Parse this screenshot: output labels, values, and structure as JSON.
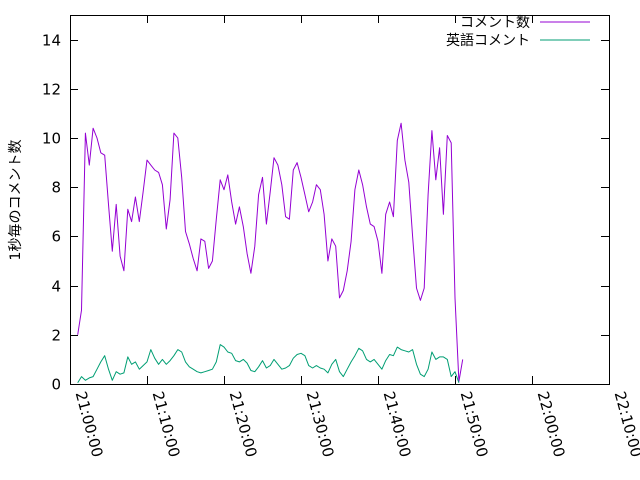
{
  "chart_data": {
    "type": "line",
    "ylabel": "1秒毎のコメント数",
    "xlabel": "",
    "xlim": [
      "21:00:00",
      "22:10:00"
    ],
    "ylim": [
      0,
      15
    ],
    "x_ticks": [
      "21:00:00",
      "21:10:00",
      "21:20:00",
      "21:30:00",
      "21:40:00",
      "21:50:00",
      "22:00:00",
      "22:10:00"
    ],
    "y_ticks": [
      0,
      2,
      4,
      6,
      8,
      10,
      12,
      14
    ],
    "grid": false,
    "legend_position": "top-right",
    "series": [
      {
        "name": "コメント数",
        "color": "#9400d3",
        "points": [
          [
            "21:01:00",
            2.0
          ],
          [
            "21:01:30",
            3.0
          ],
          [
            "21:02:00",
            10.2
          ],
          [
            "21:02:30",
            8.9
          ],
          [
            "21:03:00",
            10.4
          ],
          [
            "21:03:30",
            10.0
          ],
          [
            "21:04:00",
            9.4
          ],
          [
            "21:04:30",
            9.3
          ],
          [
            "21:05:00",
            7.3
          ],
          [
            "21:05:30",
            5.4
          ],
          [
            "21:06:00",
            7.3
          ],
          [
            "21:06:30",
            5.2
          ],
          [
            "21:07:00",
            4.6
          ],
          [
            "21:07:30",
            7.1
          ],
          [
            "21:08:00",
            6.6
          ],
          [
            "21:08:30",
            7.6
          ],
          [
            "21:09:00",
            6.6
          ],
          [
            "21:09:30",
            7.8
          ],
          [
            "21:10:00",
            9.1
          ],
          [
            "21:10:30",
            8.9
          ],
          [
            "21:11:00",
            8.7
          ],
          [
            "21:11:30",
            8.6
          ],
          [
            "21:12:00",
            8.1
          ],
          [
            "21:12:30",
            6.3
          ],
          [
            "21:13:00",
            7.5
          ],
          [
            "21:13:30",
            10.2
          ],
          [
            "21:14:00",
            10.0
          ],
          [
            "21:14:30",
            8.4
          ],
          [
            "21:15:00",
            6.2
          ],
          [
            "21:15:30",
            5.7
          ],
          [
            "21:16:00",
            5.1
          ],
          [
            "21:16:30",
            4.6
          ],
          [
            "21:17:00",
            5.9
          ],
          [
            "21:17:30",
            5.8
          ],
          [
            "21:18:00",
            4.7
          ],
          [
            "21:18:30",
            5.0
          ],
          [
            "21:19:00",
            6.7
          ],
          [
            "21:19:30",
            8.3
          ],
          [
            "21:20:00",
            7.9
          ],
          [
            "21:20:30",
            8.5
          ],
          [
            "21:21:00",
            7.4
          ],
          [
            "21:21:30",
            6.5
          ],
          [
            "21:22:00",
            7.2
          ],
          [
            "21:22:30",
            6.4
          ],
          [
            "21:23:00",
            5.3
          ],
          [
            "21:23:30",
            4.5
          ],
          [
            "21:24:00",
            5.6
          ],
          [
            "21:24:30",
            7.7
          ],
          [
            "21:25:00",
            8.4
          ],
          [
            "21:25:30",
            6.5
          ],
          [
            "21:26:00",
            7.8
          ],
          [
            "21:26:30",
            9.2
          ],
          [
            "21:27:00",
            8.9
          ],
          [
            "21:27:30",
            8.1
          ],
          [
            "21:28:00",
            6.8
          ],
          [
            "21:28:30",
            6.7
          ],
          [
            "21:29:00",
            8.7
          ],
          [
            "21:29:30",
            9.0
          ],
          [
            "21:30:00",
            8.4
          ],
          [
            "21:30:30",
            7.7
          ],
          [
            "21:31:00",
            7.0
          ],
          [
            "21:31:30",
            7.4
          ],
          [
            "21:32:00",
            8.1
          ],
          [
            "21:32:30",
            7.9
          ],
          [
            "21:33:00",
            6.9
          ],
          [
            "21:33:30",
            5.0
          ],
          [
            "21:34:00",
            5.9
          ],
          [
            "21:34:30",
            5.6
          ],
          [
            "21:35:00",
            3.5
          ],
          [
            "21:35:30",
            3.8
          ],
          [
            "21:36:00",
            4.6
          ],
          [
            "21:36:30",
            5.8
          ],
          [
            "21:37:00",
            7.9
          ],
          [
            "21:37:30",
            8.7
          ],
          [
            "21:38:00",
            8.1
          ],
          [
            "21:38:30",
            7.2
          ],
          [
            "21:39:00",
            6.5
          ],
          [
            "21:39:30",
            6.4
          ],
          [
            "21:40:00",
            5.8
          ],
          [
            "21:40:30",
            4.5
          ],
          [
            "21:41:00",
            6.9
          ],
          [
            "21:41:30",
            7.4
          ],
          [
            "21:42:00",
            6.8
          ],
          [
            "21:42:30",
            9.9
          ],
          [
            "21:43:00",
            10.6
          ],
          [
            "21:43:30",
            9.1
          ],
          [
            "21:44:00",
            8.2
          ],
          [
            "21:44:30",
            6.0
          ],
          [
            "21:45:00",
            3.9
          ],
          [
            "21:45:30",
            3.4
          ],
          [
            "21:46:00",
            3.9
          ],
          [
            "21:46:30",
            7.7
          ],
          [
            "21:47:00",
            10.3
          ],
          [
            "21:47:30",
            8.3
          ],
          [
            "21:48:00",
            9.6
          ],
          [
            "21:48:30",
            6.9
          ],
          [
            "21:49:00",
            10.1
          ],
          [
            "21:49:30",
            9.8
          ],
          [
            "21:50:00",
            3.5
          ],
          [
            "21:50:30",
            0.1
          ],
          [
            "21:51:00",
            1.0
          ]
        ]
      },
      {
        "name": "英語コメント",
        "color": "#009e73",
        "points": [
          [
            "21:01:00",
            0.05
          ],
          [
            "21:01:30",
            0.3
          ],
          [
            "21:02:00",
            0.15
          ],
          [
            "21:02:30",
            0.25
          ],
          [
            "21:03:00",
            0.3
          ],
          [
            "21:03:30",
            0.6
          ],
          [
            "21:04:00",
            0.9
          ],
          [
            "21:04:30",
            1.15
          ],
          [
            "21:05:00",
            0.6
          ],
          [
            "21:05:30",
            0.15
          ],
          [
            "21:06:00",
            0.5
          ],
          [
            "21:06:30",
            0.4
          ],
          [
            "21:07:00",
            0.45
          ],
          [
            "21:07:30",
            1.1
          ],
          [
            "21:08:00",
            0.8
          ],
          [
            "21:08:30",
            0.9
          ],
          [
            "21:09:00",
            0.6
          ],
          [
            "21:09:30",
            0.75
          ],
          [
            "21:10:00",
            0.9
          ],
          [
            "21:10:30",
            1.4
          ],
          [
            "21:11:00",
            1.05
          ],
          [
            "21:11:30",
            0.8
          ],
          [
            "21:12:00",
            1.0
          ],
          [
            "21:12:30",
            0.8
          ],
          [
            "21:13:00",
            0.95
          ],
          [
            "21:13:30",
            1.15
          ],
          [
            "21:14:00",
            1.4
          ],
          [
            "21:14:30",
            1.3
          ],
          [
            "21:15:00",
            0.9
          ],
          [
            "21:15:30",
            0.7
          ],
          [
            "21:16:00",
            0.6
          ],
          [
            "21:16:30",
            0.5
          ],
          [
            "21:17:00",
            0.45
          ],
          [
            "21:17:30",
            0.5
          ],
          [
            "21:18:00",
            0.55
          ],
          [
            "21:18:30",
            0.6
          ],
          [
            "21:19:00",
            0.9
          ],
          [
            "21:19:30",
            1.6
          ],
          [
            "21:20:00",
            1.5
          ],
          [
            "21:20:30",
            1.3
          ],
          [
            "21:21:00",
            1.25
          ],
          [
            "21:21:30",
            0.95
          ],
          [
            "21:22:00",
            0.9
          ],
          [
            "21:22:30",
            1.0
          ],
          [
            "21:23:00",
            0.85
          ],
          [
            "21:23:30",
            0.55
          ],
          [
            "21:24:00",
            0.5
          ],
          [
            "21:24:30",
            0.7
          ],
          [
            "21:25:00",
            0.95
          ],
          [
            "21:25:30",
            0.65
          ],
          [
            "21:26:00",
            0.75
          ],
          [
            "21:26:30",
            1.0
          ],
          [
            "21:27:00",
            0.8
          ],
          [
            "21:27:30",
            0.6
          ],
          [
            "21:28:00",
            0.65
          ],
          [
            "21:28:30",
            0.75
          ],
          [
            "21:29:00",
            1.05
          ],
          [
            "21:29:30",
            1.2
          ],
          [
            "21:30:00",
            1.25
          ],
          [
            "21:30:30",
            1.15
          ],
          [
            "21:31:00",
            0.75
          ],
          [
            "21:31:30",
            0.65
          ],
          [
            "21:32:00",
            0.75
          ],
          [
            "21:32:30",
            0.65
          ],
          [
            "21:33:00",
            0.6
          ],
          [
            "21:33:30",
            0.45
          ],
          [
            "21:34:00",
            0.8
          ],
          [
            "21:34:30",
            1.0
          ],
          [
            "21:35:00",
            0.5
          ],
          [
            "21:35:30",
            0.3
          ],
          [
            "21:36:00",
            0.6
          ],
          [
            "21:36:30",
            0.9
          ],
          [
            "21:37:00",
            1.15
          ],
          [
            "21:37:30",
            1.45
          ],
          [
            "21:38:00",
            1.35
          ],
          [
            "21:38:30",
            1.0
          ],
          [
            "21:39:00",
            0.9
          ],
          [
            "21:39:30",
            1.0
          ],
          [
            "21:40:00",
            0.8
          ],
          [
            "21:40:30",
            0.6
          ],
          [
            "21:41:00",
            0.95
          ],
          [
            "21:41:30",
            1.2
          ],
          [
            "21:42:00",
            1.15
          ],
          [
            "21:42:30",
            1.5
          ],
          [
            "21:43:00",
            1.4
          ],
          [
            "21:43:30",
            1.35
          ],
          [
            "21:44:00",
            1.3
          ],
          [
            "21:44:30",
            1.4
          ],
          [
            "21:45:00",
            0.8
          ],
          [
            "21:45:30",
            0.4
          ],
          [
            "21:46:00",
            0.3
          ],
          [
            "21:46:30",
            0.6
          ],
          [
            "21:47:00",
            1.3
          ],
          [
            "21:47:30",
            1.0
          ],
          [
            "21:48:00",
            1.1
          ],
          [
            "21:48:30",
            1.1
          ],
          [
            "21:49:00",
            1.0
          ],
          [
            "21:49:30",
            0.3
          ],
          [
            "21:50:00",
            0.5
          ],
          [
            "21:50:30",
            0.05
          ]
        ]
      }
    ]
  }
}
